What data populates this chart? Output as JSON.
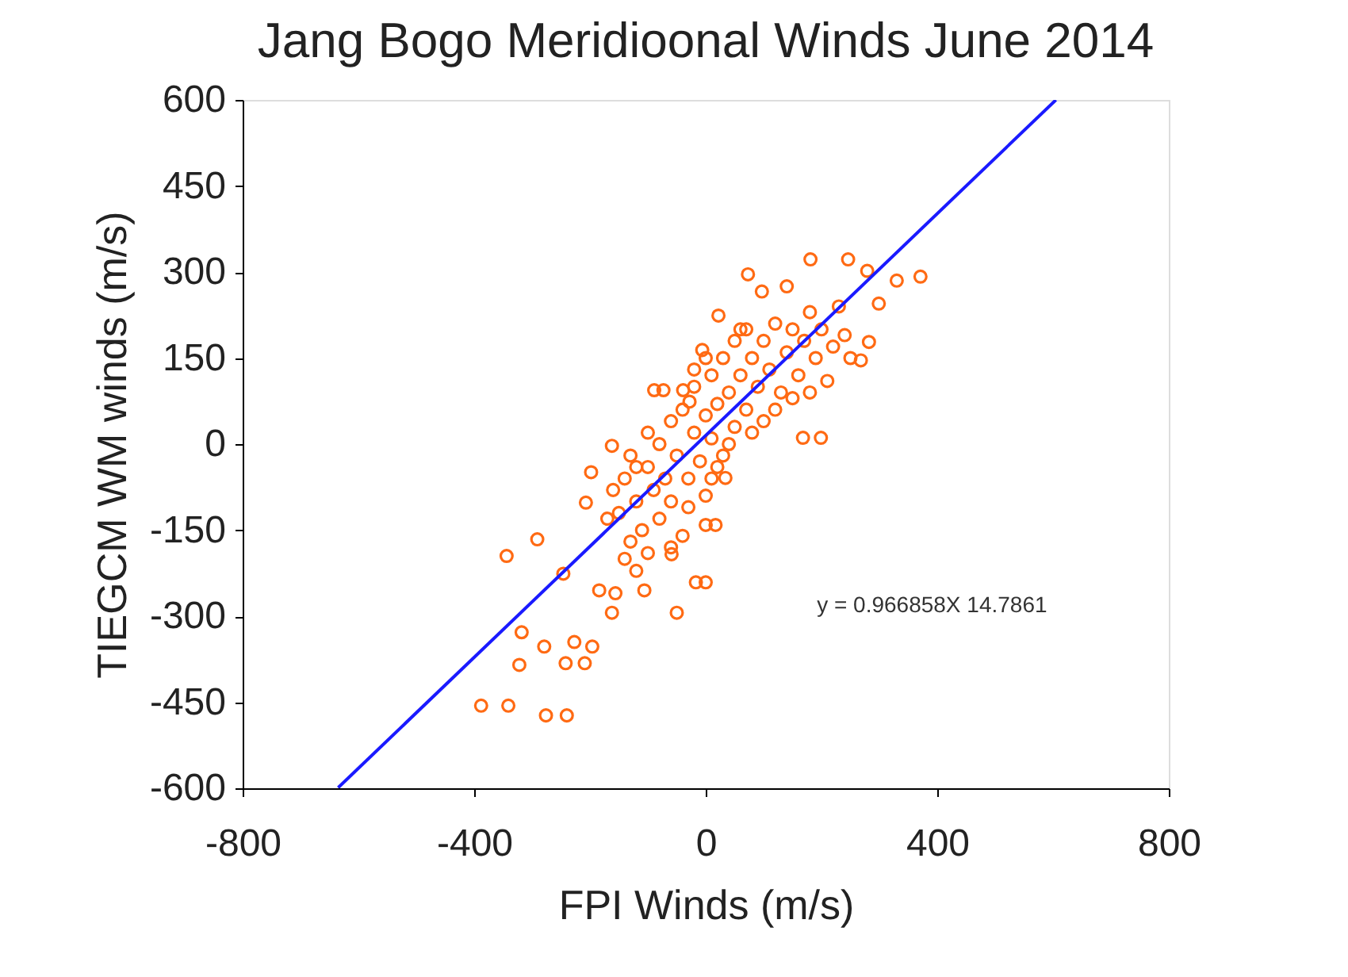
{
  "chart_data": {
    "type": "scatter",
    "title": "Jang Bogo  Meridioonal Winds June  2014",
    "xlabel": "FPI Winds (m/s)",
    "ylabel": "TIEGCM WM winds (m/s)",
    "xlim": [
      -800,
      800
    ],
    "xticks": [
      -800,
      -400,
      0,
      400,
      800
    ],
    "ylim": [
      -600,
      600
    ],
    "yticks": [
      600,
      450,
      300,
      150,
      0,
      -150,
      -300,
      -450,
      -600
    ],
    "grid": false,
    "annotations": [
      "y =   0.966858X  14.7861"
    ],
    "series": [
      {
        "type": "scatter",
        "marker": "circle",
        "color": "#ff6a13",
        "x": [
          73,
          97,
          140,
          181,
          246,
          279,
          330,
          371,
          299,
          282,
          268,
          168,
          199,
          22,
          -6,
          -73,
          -162,
          -198,
          -207,
          -291,
          -344,
          -246,
          -162,
          -50,
          -106,
          -156,
          -184,
          -17,
          0,
          34,
          17,
          0,
          -59,
          -120,
          -318,
          -279,
          -322,
          -227,
          -196,
          -242,
          -209,
          -388,
          -341,
          -276,
          -240,
          -89,
          -39,
          -28,
          -150,
          -140,
          -130,
          -120,
          -110,
          -100,
          -100,
          -90,
          -80,
          -80,
          -70,
          -60,
          -60,
          -50,
          -40,
          -40,
          -30,
          -20,
          -20,
          -10,
          0,
          0,
          10,
          10,
          20,
          30,
          30,
          40,
          50,
          50,
          60,
          70,
          70,
          80,
          90,
          100,
          100,
          110,
          120,
          130,
          140,
          150,
          160,
          170,
          180,
          190,
          200,
          210,
          220,
          230,
          240,
          250,
          120,
          150,
          180,
          60,
          0,
          -20,
          -120,
          -160,
          -60,
          -100,
          -130,
          -170,
          -140,
          20,
          40,
          80,
          -30,
          10
        ],
        "values": [
          296,
          266,
          275,
          322,
          322,
          302,
          285,
          292,
          245,
          178,
          146,
          11,
          11,
          224,
          164,
          94,
          -3,
          -49,
          -102,
          -166,
          -195,
          -226,
          -294,
          -294,
          -255,
          -260,
          -255,
          -241,
          -241,
          -59,
          -141,
          -141,
          -192,
          -221,
          -328,
          -353,
          -385,
          -345,
          -353,
          -382,
          -382,
          -456,
          -456,
          -473,
          -473,
          94,
          94,
          74,
          -120,
          -60,
          -20,
          -100,
          -150,
          -40,
          20,
          -80,
          -130,
          0,
          -60,
          40,
          -100,
          -20,
          -160,
          60,
          -60,
          20,
          100,
          -30,
          50,
          -90,
          120,
          10,
          70,
          -20,
          150,
          90,
          30,
          180,
          120,
          60,
          200,
          150,
          100,
          180,
          40,
          130,
          210,
          90,
          160,
          200,
          120,
          180,
          230,
          150,
          200,
          110,
          170,
          240,
          190,
          150,
          60,
          80,
          90,
          200,
          150,
          130,
          -40,
          -80,
          -180,
          -190,
          -170,
          -130,
          -200,
          -40,
          0,
          20,
          -110,
          -60
        ]
      },
      {
        "type": "line",
        "marker": "none",
        "line_style": "solid",
        "color": "#1a1aff",
        "x": [
          -635,
          605
        ],
        "values": [
          -599,
          600
        ]
      }
    ]
  }
}
